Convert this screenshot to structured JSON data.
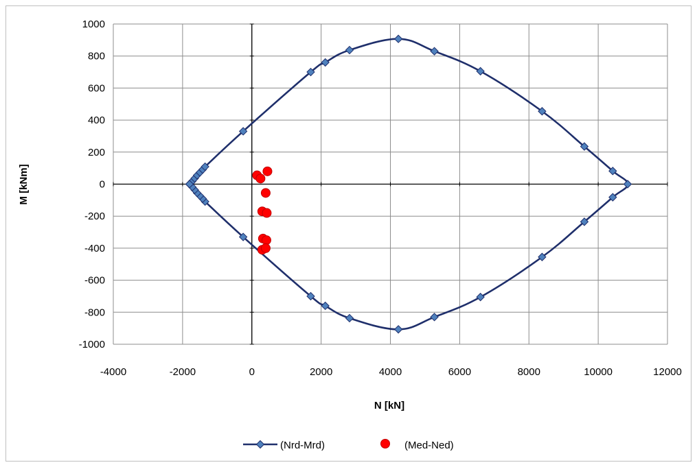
{
  "chart_data": {
    "type": "scatter",
    "title": "",
    "xlabel": "N [kN]",
    "ylabel": "M [kNm]",
    "xlim": [
      -4000,
      12000
    ],
    "ylim": [
      -1000,
      1000
    ],
    "x_ticks": [
      -4000,
      -2000,
      0,
      2000,
      4000,
      6000,
      8000,
      10000,
      12000
    ],
    "y_ticks": [
      -1000,
      -800,
      -600,
      -400,
      -200,
      0,
      200,
      400,
      600,
      800,
      1000
    ],
    "grid": true,
    "legend_position": "bottom",
    "series": [
      {
        "name": "(Nrd-Mrd)",
        "style": "line-with-diamond-markers",
        "color": "#1f2f6b",
        "marker_color": "#4f81bd",
        "x": [
          -1800,
          -1720,
          -1650,
          -1580,
          -1500,
          -1420,
          -1350,
          -250,
          1700,
          2120,
          2820,
          4230,
          5270,
          6600,
          8380,
          9600,
          10420,
          10850,
          10420,
          9600,
          8380,
          6600,
          5270,
          4230,
          2820,
          2120,
          1700,
          -250,
          -1350,
          -1420,
          -1500,
          -1580,
          -1650,
          -1720,
          -1800
        ],
        "y": [
          0,
          18,
          36,
          55,
          73,
          91,
          109,
          330,
          700,
          760,
          837,
          907,
          830,
          705,
          455,
          235,
          82,
          0,
          -82,
          -235,
          -455,
          -705,
          -830,
          -907,
          -837,
          -760,
          -700,
          -330,
          -109,
          -91,
          -73,
          -55,
          -36,
          -18,
          0
        ]
      },
      {
        "name": "(Med-Ned)",
        "style": "markers",
        "color": "#ff0000",
        "x": [
          150,
          250,
          450,
          400,
          300,
          430,
          320,
          420,
          300,
          400
        ],
        "y": [
          55,
          35,
          80,
          -55,
          -170,
          -180,
          -340,
          -350,
          -410,
          -400
        ]
      }
    ]
  }
}
